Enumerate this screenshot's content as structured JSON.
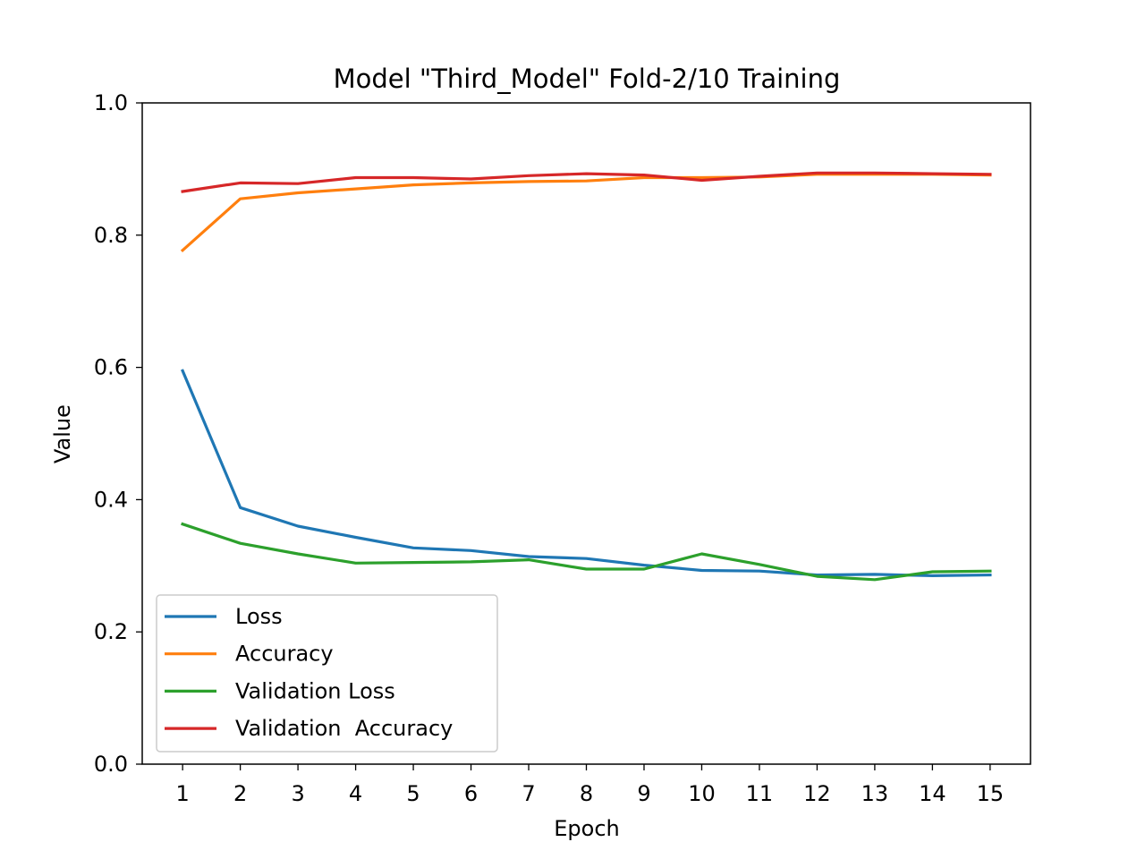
{
  "chart_data": {
    "type": "line",
    "title": "Model \"Third_Model\" Fold-2/10 Training",
    "xlabel": "Epoch",
    "ylabel": "Value",
    "x": [
      1,
      2,
      3,
      4,
      5,
      6,
      7,
      8,
      9,
      10,
      11,
      12,
      13,
      14,
      15
    ],
    "xticks": [
      "1",
      "2",
      "3",
      "4",
      "5",
      "6",
      "7",
      "8",
      "9",
      "10",
      "11",
      "12",
      "13",
      "14",
      "15"
    ],
    "yticks": [
      "0.0",
      "0.2",
      "0.4",
      "0.6",
      "0.8",
      "1.0"
    ],
    "ylim": [
      0,
      1.0
    ],
    "xlim": [
      0.3,
      15.7
    ],
    "grid": false,
    "legend_position": "lower-left",
    "series": [
      {
        "name": "Loss",
        "color": "#1f77b4",
        "values": [
          0.595,
          0.388,
          0.36,
          0.343,
          0.327,
          0.323,
          0.314,
          0.311,
          0.301,
          0.293,
          0.292,
          0.286,
          0.287,
          0.285,
          0.286
        ]
      },
      {
        "name": "Accuracy",
        "color": "#ff7f0e",
        "values": [
          0.777,
          0.855,
          0.864,
          0.87,
          0.876,
          0.879,
          0.881,
          0.882,
          0.887,
          0.887,
          0.888,
          0.892,
          0.892,
          0.892,
          0.891
        ]
      },
      {
        "name": "Validation Loss",
        "color": "#2ca02c",
        "values": [
          0.363,
          0.334,
          0.318,
          0.304,
          0.305,
          0.306,
          0.309,
          0.295,
          0.295,
          0.318,
          0.302,
          0.284,
          0.279,
          0.291,
          0.292
        ]
      },
      {
        "name": "Validation  Accuracy",
        "color": "#d62728",
        "values": [
          0.866,
          0.879,
          0.878,
          0.887,
          0.887,
          0.885,
          0.89,
          0.893,
          0.891,
          0.883,
          0.889,
          0.894,
          0.894,
          0.893,
          0.892
        ]
      }
    ]
  }
}
